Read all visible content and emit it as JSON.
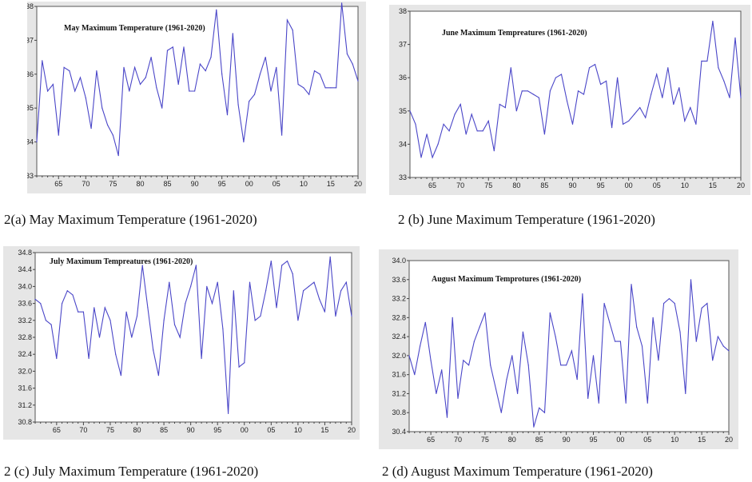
{
  "chart_data": [
    {
      "type": "line",
      "title": "May Maximum Temperature (1961-2020)",
      "caption": "2(a) May Maximum Temperature (1961-2020)",
      "x": [
        1961,
        1962,
        1963,
        1964,
        1965,
        1966,
        1967,
        1968,
        1969,
        1970,
        1971,
        1972,
        1973,
        1974,
        1975,
        1976,
        1977,
        1978,
        1979,
        1980,
        1981,
        1982,
        1983,
        1984,
        1985,
        1986,
        1987,
        1988,
        1989,
        1990,
        1991,
        1992,
        1993,
        1994,
        1995,
        1996,
        1997,
        1998,
        1999,
        2000,
        2001,
        2002,
        2003,
        2004,
        2005,
        2006,
        2007,
        2008,
        2009,
        2010,
        2011,
        2012,
        2013,
        2014,
        2015,
        2016,
        2017,
        2018,
        2019,
        2020
      ],
      "series": [
        {
          "values": [
            34.0,
            36.4,
            35.5,
            35.7,
            34.2,
            36.2,
            36.1,
            35.5,
            35.9,
            35.3,
            34.4,
            36.1,
            35.0,
            34.5,
            34.2,
            33.6,
            36.2,
            35.5,
            36.2,
            35.7,
            35.9,
            36.5,
            35.6,
            35.0,
            36.7,
            36.8,
            35.7,
            36.8,
            35.5,
            35.5,
            36.3,
            36.1,
            36.5,
            37.9,
            36.0,
            34.8,
            37.2,
            35.1,
            34.0,
            35.2,
            35.4,
            36.0,
            36.5,
            35.5,
            36.2,
            34.2,
            37.6,
            37.3,
            35.7,
            35.6,
            35.4,
            36.1,
            36.0,
            35.6,
            35.6,
            35.6,
            38.1,
            36.6,
            36.3,
            35.8
          ]
        }
      ],
      "ylim": [
        33,
        38
      ],
      "yticks": [
        "33",
        "34",
        "35",
        "36",
        "37",
        "38"
      ],
      "xticks": [
        "65",
        "70",
        "75",
        "80",
        "85",
        "90",
        "95",
        "00",
        "05",
        "10",
        "15",
        "20"
      ]
    },
    {
      "type": "line",
      "title": "June Maximum Tempreatures (1961-2020)",
      "caption": "2 (b) June Maximum Temperature (1961-2020)",
      "x": [
        1961,
        1962,
        1963,
        1964,
        1965,
        1966,
        1967,
        1968,
        1969,
        1970,
        1971,
        1972,
        1973,
        1974,
        1975,
        1976,
        1977,
        1978,
        1979,
        1980,
        1981,
        1982,
        1983,
        1984,
        1985,
        1986,
        1987,
        1988,
        1989,
        1990,
        1991,
        1992,
        1993,
        1994,
        1995,
        1996,
        1997,
        1998,
        1999,
        2000,
        2001,
        2002,
        2003,
        2004,
        2005,
        2006,
        2007,
        2008,
        2009,
        2010,
        2011,
        2012,
        2013,
        2014,
        2015,
        2016,
        2017,
        2018,
        2019,
        2020
      ],
      "series": [
        {
          "values": [
            35.0,
            34.6,
            33.6,
            34.3,
            33.6,
            34.0,
            34.6,
            34.4,
            34.9,
            35.2,
            34.3,
            34.9,
            34.4,
            34.4,
            34.7,
            33.8,
            35.2,
            35.1,
            36.3,
            35.0,
            35.6,
            35.6,
            35.5,
            35.4,
            34.3,
            35.6,
            36.0,
            36.1,
            35.3,
            34.6,
            35.6,
            35.5,
            36.3,
            36.4,
            35.8,
            35.9,
            34.5,
            36.0,
            34.6,
            34.7,
            34.9,
            35.1,
            34.8,
            35.5,
            36.1,
            35.4,
            36.3,
            35.2,
            35.7,
            34.7,
            35.1,
            34.6,
            36.5,
            36.5,
            37.7,
            36.3,
            35.9,
            35.4,
            37.2,
            35.4
          ]
        }
      ],
      "ylim": [
        33,
        38
      ],
      "yticks": [
        "33",
        "34",
        "35",
        "36",
        "37",
        "38"
      ],
      "xticks": [
        "65",
        "70",
        "75",
        "80",
        "85",
        "90",
        "95",
        "00",
        "05",
        "10",
        "15",
        "20"
      ]
    },
    {
      "type": "line",
      "title": "July Maximum Tempreatures (1961-2020)",
      "caption": "2 (c) July Maximum Temperature (1961-2020)",
      "x": [
        1961,
        1962,
        1963,
        1964,
        1965,
        1966,
        1967,
        1968,
        1969,
        1970,
        1971,
        1972,
        1973,
        1974,
        1975,
        1976,
        1977,
        1978,
        1979,
        1980,
        1981,
        1982,
        1983,
        1984,
        1985,
        1986,
        1987,
        1988,
        1989,
        1990,
        1991,
        1992,
        1993,
        1994,
        1995,
        1996,
        1997,
        1998,
        1999,
        2000,
        2001,
        2002,
        2003,
        2004,
        2005,
        2006,
        2007,
        2008,
        2009,
        2010,
        2011,
        2012,
        2013,
        2014,
        2015,
        2016,
        2017,
        2018,
        2019,
        2020
      ],
      "series": [
        {
          "values": [
            33.7,
            33.6,
            33.2,
            33.1,
            32.3,
            33.6,
            33.9,
            33.8,
            33.4,
            33.4,
            32.3,
            33.5,
            32.8,
            33.5,
            33.2,
            32.4,
            31.9,
            33.4,
            32.8,
            33.3,
            34.5,
            33.5,
            32.5,
            31.9,
            33.2,
            34.1,
            33.1,
            32.8,
            33.6,
            34.0,
            34.5,
            32.3,
            34.0,
            33.6,
            34.1,
            33.0,
            31.0,
            33.9,
            32.1,
            32.2,
            34.1,
            33.2,
            33.3,
            33.9,
            34.6,
            33.5,
            34.5,
            34.6,
            34.3,
            33.2,
            33.9,
            34.0,
            34.1,
            33.7,
            33.4,
            34.7,
            33.3,
            33.9,
            34.1,
            33.3
          ]
        }
      ],
      "ylim": [
        30.8,
        34.8
      ],
      "yticks": [
        "30.8",
        "31.2",
        "31.6",
        "32.0",
        "32.4",
        "32.8",
        "33.2",
        "33.6",
        "34.0",
        "34.4",
        "34.8"
      ],
      "xticks": [
        "65",
        "70",
        "75",
        "80",
        "85",
        "90",
        "95",
        "00",
        "05",
        "10",
        "15",
        "20"
      ]
    },
    {
      "type": "line",
      "title": "August Maximum Temprotures (1961-2020)",
      "caption": "2 (d) August Maximum Temperature (1961-2020)",
      "x": [
        1961,
        1962,
        1963,
        1964,
        1965,
        1966,
        1967,
        1968,
        1969,
        1970,
        1971,
        1972,
        1973,
        1974,
        1975,
        1976,
        1977,
        1978,
        1979,
        1980,
        1981,
        1982,
        1983,
        1984,
        1985,
        1986,
        1987,
        1988,
        1989,
        1990,
        1991,
        1992,
        1993,
        1994,
        1995,
        1996,
        1997,
        1998,
        1999,
        2000,
        2001,
        2002,
        2003,
        2004,
        2005,
        2006,
        2007,
        2008,
        2009,
        2010,
        2011,
        2012,
        2013,
        2014,
        2015,
        2016,
        2017,
        2018,
        2019,
        2020
      ],
      "series": [
        {
          "values": [
            32.0,
            31.6,
            32.2,
            32.7,
            31.9,
            31.2,
            31.7,
            30.7,
            32.8,
            31.1,
            31.9,
            31.8,
            32.3,
            32.6,
            32.9,
            31.8,
            31.3,
            30.8,
            31.5,
            32.0,
            31.2,
            32.5,
            31.8,
            30.5,
            30.9,
            30.8,
            32.9,
            32.4,
            31.8,
            31.8,
            32.1,
            31.5,
            33.3,
            31.1,
            32.0,
            31.0,
            33.1,
            32.7,
            32.3,
            32.3,
            31.0,
            33.5,
            32.6,
            32.2,
            31.0,
            32.8,
            31.9,
            33.1,
            33.2,
            33.1,
            32.5,
            31.2,
            33.6,
            32.3,
            33.0,
            33.1,
            31.9,
            32.4,
            32.2,
            32.1
          ]
        }
      ],
      "ylim": [
        30.4,
        34.0
      ],
      "yticks": [
        "30.4",
        "30.8",
        "31.2",
        "31.6",
        "32.0",
        "32.4",
        "32.8",
        "33.2",
        "33.6",
        "34.0"
      ],
      "xticks": [
        "65",
        "70",
        "75",
        "80",
        "85",
        "90",
        "95",
        "00",
        "05",
        "10",
        "15",
        "20"
      ]
    }
  ],
  "colors": {
    "line": "#4a46c8",
    "panel_bg": "#e6e6e6",
    "plot_bg": "#ffffff"
  }
}
